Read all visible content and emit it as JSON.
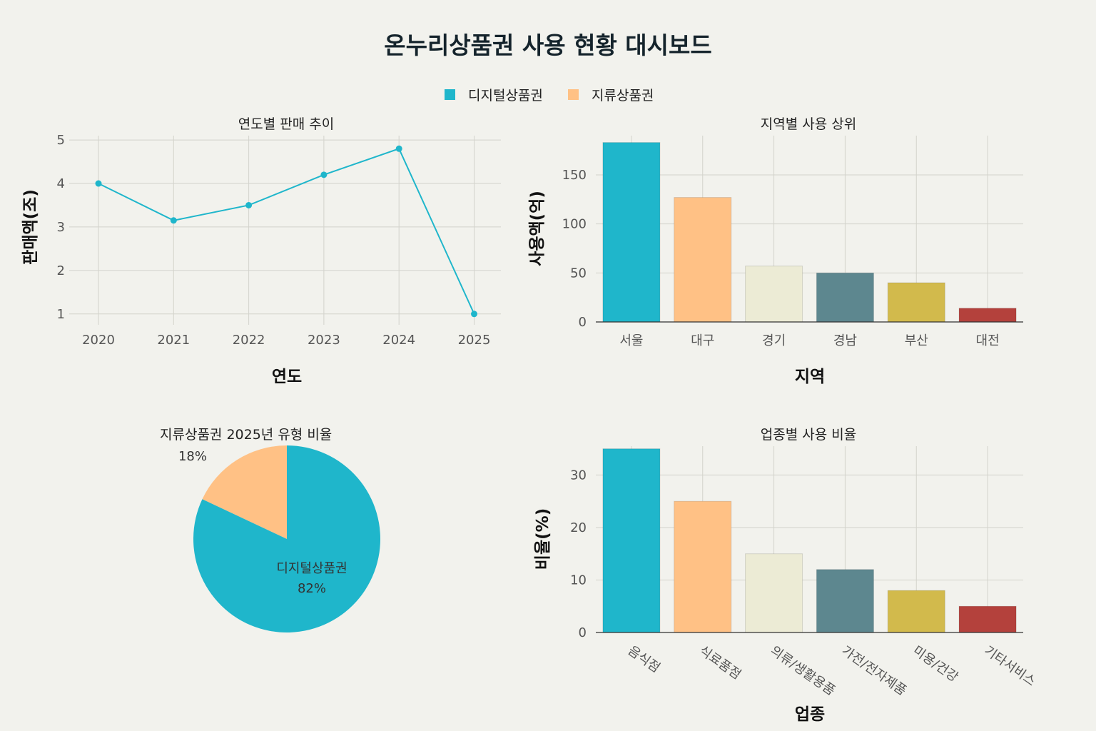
{
  "dashboard": {
    "title": "온누리상품권 사용 현황 대시보드",
    "legend": [
      {
        "label": "디지털상품권",
        "color": "#1fb6cb"
      },
      {
        "label": "지류상품권",
        "color": "#ffc185"
      }
    ]
  },
  "chart_data": [
    {
      "id": "line",
      "type": "line",
      "title": "연도별 판매 추이",
      "xlabel": "연도",
      "ylabel": "판매액(조)",
      "categories": [
        "2020",
        "2021",
        "2022",
        "2023",
        "2024",
        "2025"
      ],
      "values": [
        4.0,
        3.15,
        3.5,
        4.2,
        4.8,
        1.0
      ],
      "ylim": [
        0.75,
        5.1
      ],
      "yticks": [
        1,
        2,
        3,
        4,
        5
      ],
      "color": "#1fb6cb",
      "grid": true
    },
    {
      "id": "region",
      "type": "bar",
      "title": "지역별 사용 상위",
      "xlabel": "지역",
      "ylabel": "사용액(억)",
      "categories": [
        "서울",
        "대구",
        "경기",
        "경남",
        "부산",
        "대전"
      ],
      "values": [
        183,
        127,
        57,
        50,
        40,
        14
      ],
      "ylim": [
        0,
        190
      ],
      "yticks": [
        0,
        50,
        100,
        150
      ],
      "colors": [
        "#1fb6cb",
        "#ffc185",
        "#ecebd5",
        "#5d878f",
        "#d2ba4c",
        "#b4413c"
      ],
      "grid": true
    },
    {
      "id": "pie",
      "type": "pie",
      "title": "2025년 유형 비율",
      "slices": [
        {
          "label": "디지털상품권",
          "pct_text": "82%",
          "value": 82,
          "color": "#1fb6cb"
        },
        {
          "label": "지류상품권",
          "pct_text": "18%",
          "value": 18,
          "color": "#ffc185"
        }
      ]
    },
    {
      "id": "industry",
      "type": "bar",
      "title": "업종별 사용 비율",
      "xlabel": "업종",
      "ylabel": "비율(%)",
      "categories": [
        "음식점",
        "식료품점",
        "의류/생활용품",
        "가전/전자제품",
        "미용/건강",
        "기타서비스"
      ],
      "values": [
        35,
        25,
        15,
        12,
        8,
        5
      ],
      "ylim": [
        0,
        35.5
      ],
      "yticks": [
        0,
        10,
        20,
        30
      ],
      "colors": [
        "#1fb6cb",
        "#ffc185",
        "#ecebd5",
        "#5d878f",
        "#d2ba4c",
        "#b4413c"
      ],
      "grid": true
    }
  ]
}
